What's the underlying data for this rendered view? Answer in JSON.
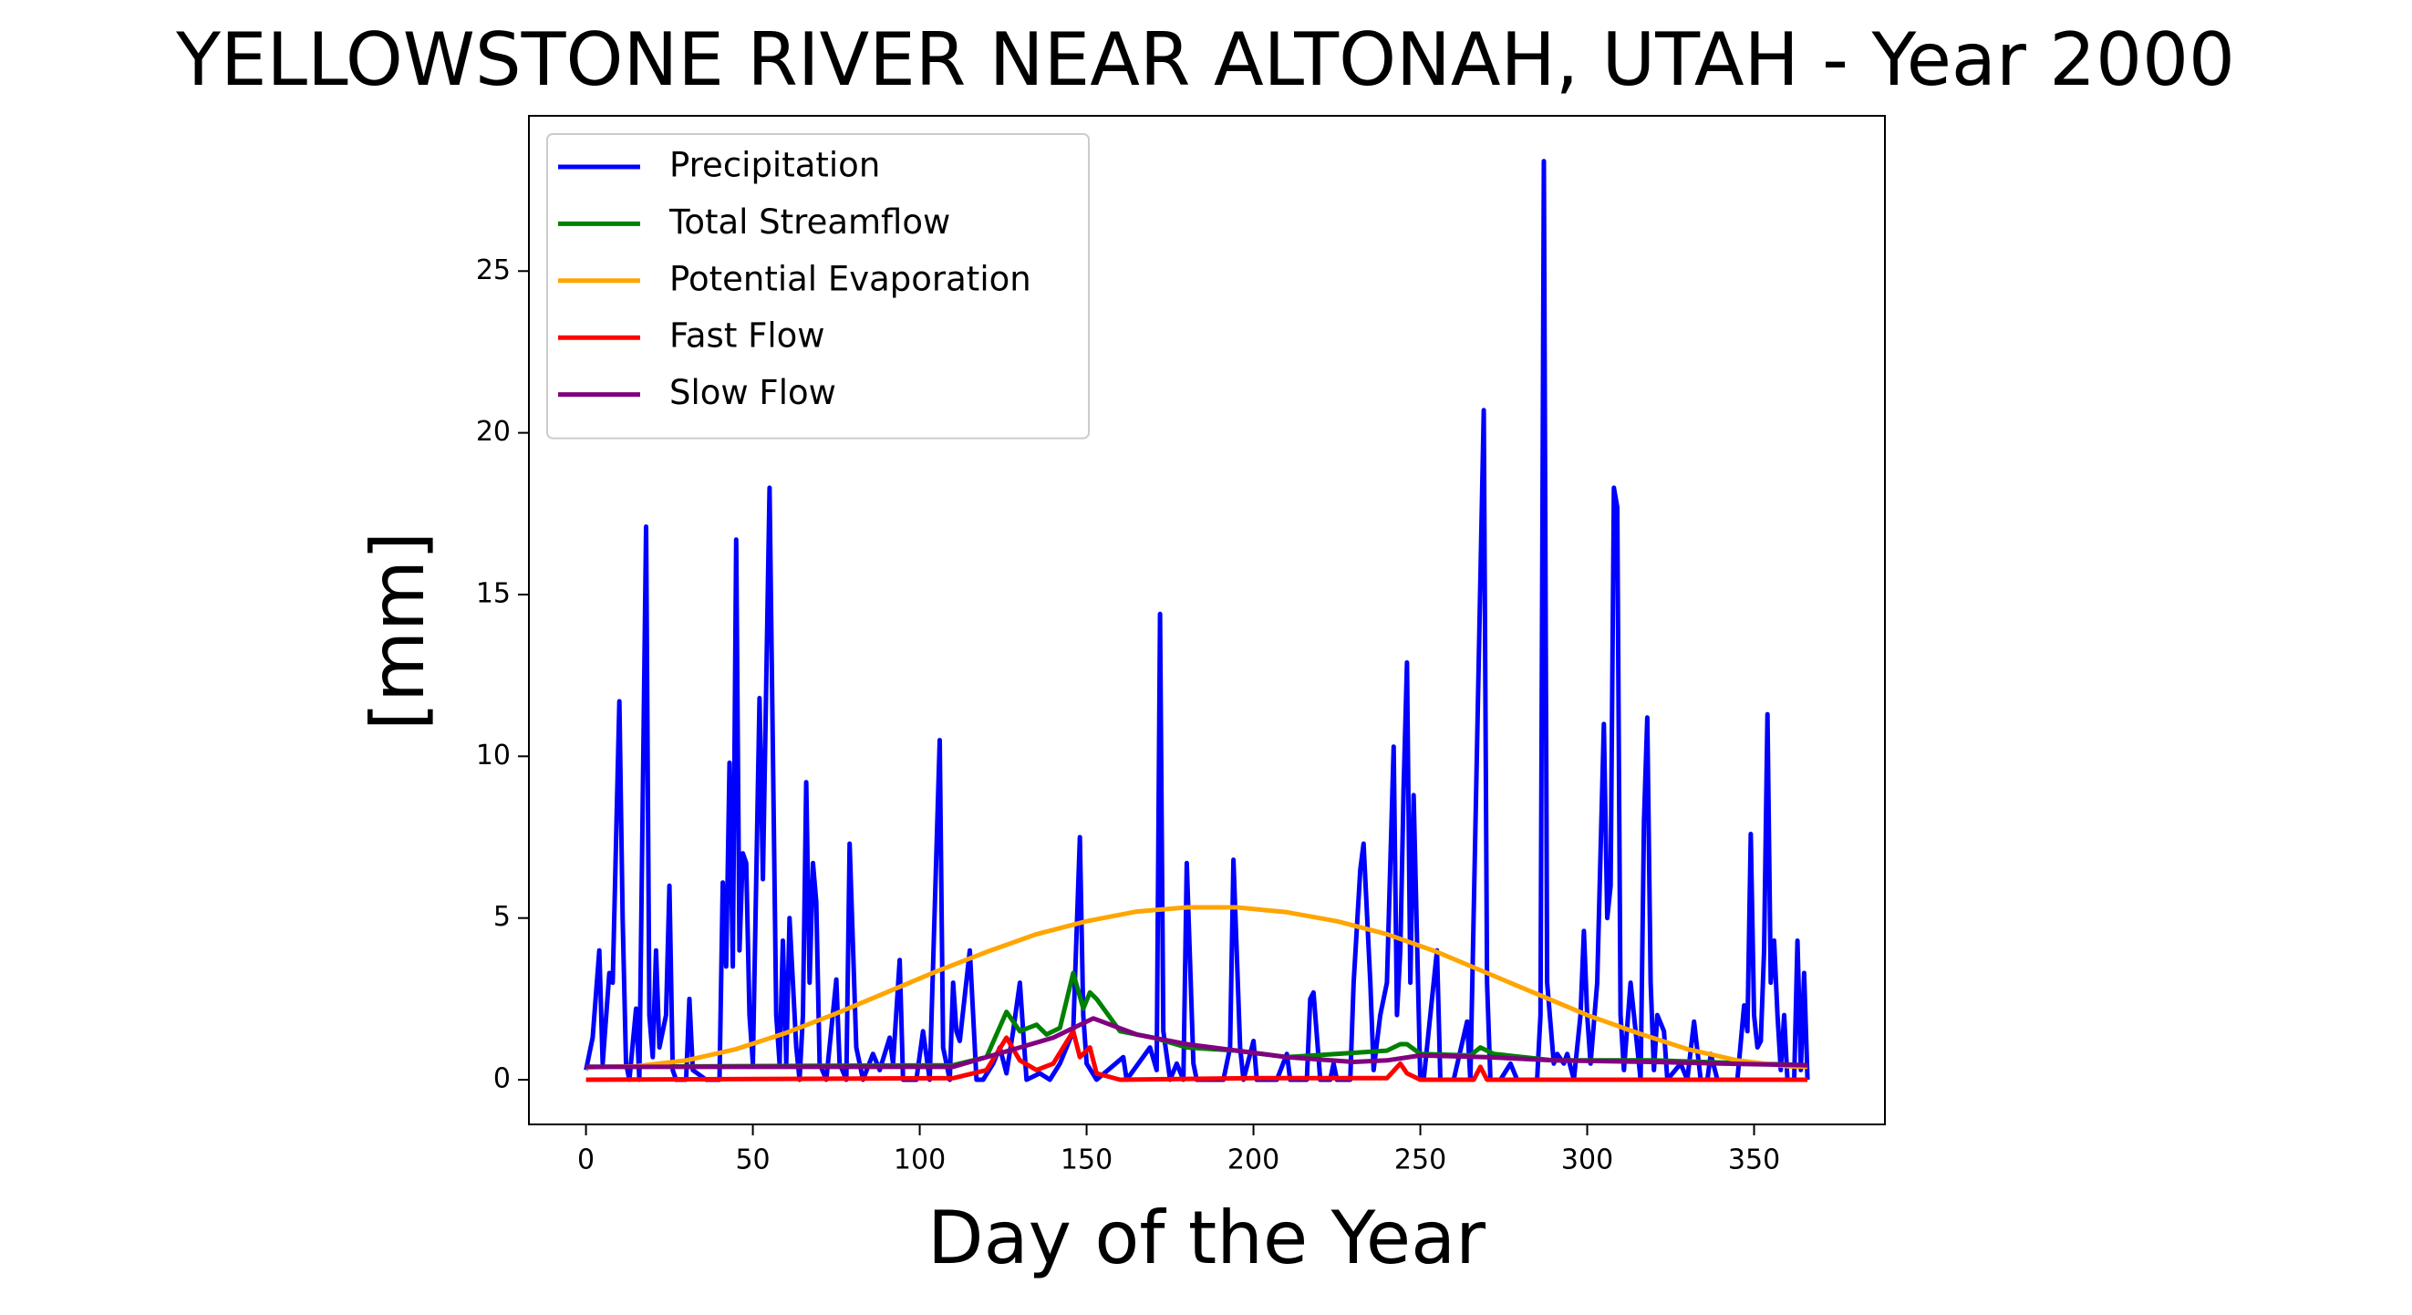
{
  "chart_data": {
    "type": "line",
    "title": "YELLOWSTONE RIVER NEAR ALTONAH, UTAH - Year 2000",
    "x_label": "Day of the Year",
    "y_label": "[mm]",
    "xlim": [
      -17.1,
      389.2
    ],
    "ylim": [
      -1.38,
      29.8
    ],
    "xticks": [
      0,
      50,
      100,
      150,
      200,
      250,
      300,
      350
    ],
    "yticks": [
      0,
      5,
      10,
      15,
      20,
      25
    ],
    "legend": "upper left",
    "series": [
      {
        "name": "Precipitation",
        "color": "#0000ff",
        "x": [
          0,
          2,
          4,
          5,
          7,
          8,
          10,
          11,
          12,
          13,
          15,
          16,
          18,
          19,
          20,
          21,
          22,
          24,
          25,
          26,
          27,
          30,
          31,
          32,
          36,
          40,
          41,
          42,
          43,
          44,
          45,
          46,
          47,
          48,
          49,
          50,
          52,
          53,
          55,
          57,
          58,
          59,
          60,
          61,
          63,
          64,
          65,
          66,
          67,
          68,
          69,
          70,
          72,
          75,
          76,
          78,
          79,
          81,
          83,
          86,
          88,
          91,
          92,
          94,
          95,
          99,
          101,
          103,
          106,
          107,
          109,
          110,
          111,
          112,
          115,
          117,
          119,
          122,
          124,
          126,
          128,
          130,
          131,
          132,
          136,
          139,
          142,
          146,
          148,
          149,
          150,
          153,
          161,
          162,
          169,
          171,
          172,
          173,
          175,
          177,
          179,
          180,
          182,
          183,
          191,
          193,
          194,
          196,
          197,
          200,
          201,
          207,
          210,
          211,
          216,
          217,
          218,
          220,
          223,
          224,
          225,
          229,
          230,
          232,
          233,
          235,
          236,
          238,
          240,
          242,
          243,
          244,
          245,
          246,
          247,
          248,
          250,
          251,
          255,
          256,
          260,
          264,
          265,
          269,
          270,
          271,
          274,
          277,
          279,
          285,
          286,
          287,
          288,
          290,
          291,
          293,
          294,
          296,
          298,
          299,
          300,
          301,
          303,
          305,
          306,
          307,
          308,
          309,
          310,
          311,
          313,
          314,
          316,
          317,
          318,
          319,
          320,
          321,
          323,
          324,
          328,
          330,
          332,
          334,
          336,
          337,
          339,
          345,
          347,
          348,
          349,
          350,
          351,
          352,
          353,
          354,
          355,
          356,
          357,
          358,
          359,
          360,
          362,
          363,
          364,
          365,
          366
        ],
        "values": [
          0.3,
          1.3,
          4,
          0.5,
          3.3,
          3,
          11.7,
          5,
          0.5,
          0,
          2.2,
          0,
          17.1,
          2,
          0.7,
          4,
          1,
          2,
          6,
          0.3,
          0,
          0,
          2.5,
          0.3,
          0,
          0,
          6.1,
          3.5,
          9.8,
          3.5,
          16.7,
          4,
          7,
          6.7,
          2,
          0.5,
          11.8,
          6.2,
          18.3,
          2,
          0.5,
          4.3,
          0.5,
          5,
          1,
          0,
          2,
          9.2,
          3,
          6.7,
          5.5,
          0.5,
          0,
          3.1,
          0.5,
          0,
          7.3,
          1,
          0,
          0.8,
          0.3,
          1.3,
          0.5,
          3.7,
          0,
          0,
          1.5,
          0,
          10.5,
          1,
          0,
          3,
          1.5,
          1.2,
          4,
          0,
          0,
          0.5,
          1,
          0.2,
          1.5,
          3,
          1.5,
          0,
          0.2,
          0,
          0.5,
          1.5,
          7.5,
          2,
          0.5,
          0,
          0.7,
          0,
          1,
          0.3,
          14.4,
          1.5,
          0,
          0.5,
          0,
          6.7,
          0.5,
          0,
          0,
          1,
          6.8,
          1,
          0,
          1.2,
          0,
          0,
          0.8,
          0,
          0,
          2.5,
          2.7,
          0,
          0,
          0.5,
          0,
          0,
          3,
          6.5,
          7.3,
          3,
          0.3,
          2,
          3,
          10.3,
          2,
          4,
          9,
          12.9,
          3,
          8.8,
          0,
          0,
          4,
          0,
          0,
          1.8,
          0,
          20.7,
          3,
          0,
          0,
          0.5,
          0,
          0,
          2,
          28.4,
          3,
          0.5,
          0.8,
          0.5,
          0.8,
          0,
          2,
          4.6,
          2,
          0.5,
          3,
          11,
          5,
          6,
          18.3,
          17.7,
          2,
          0.3,
          3,
          2,
          0,
          8,
          11.2,
          3,
          0.3,
          2,
          1.5,
          0,
          0.5,
          0,
          1.8,
          0,
          0,
          0.8,
          0,
          0,
          2.3,
          1.5,
          7.6,
          2,
          1,
          1.2,
          4,
          11.3,
          3,
          4.3,
          2,
          0.3,
          2,
          0,
          0,
          4.3,
          0.3,
          3.3,
          0
        ]
      },
      {
        "name": "Total Streamflow",
        "color": "#008000",
        "x": [
          0,
          110,
          120,
          126,
          130,
          135,
          138,
          142,
          146,
          149,
          151,
          153,
          160,
          170,
          180,
          195,
          210,
          240,
          244,
          246,
          250,
          265,
          268,
          272,
          290,
          320,
          366
        ],
        "values": [
          0.4,
          0.45,
          0.7,
          2.1,
          1.5,
          1.7,
          1.4,
          1.6,
          3.3,
          2.2,
          2.7,
          2.5,
          1.5,
          1.3,
          1.0,
          0.9,
          0.7,
          0.9,
          1.1,
          1.1,
          0.8,
          0.75,
          1.0,
          0.8,
          0.6,
          0.6,
          0.45
        ]
      },
      {
        "name": "Potential Evaporation",
        "color": "#ffa500",
        "x": [
          0,
          15,
          30,
          45,
          60,
          75,
          90,
          105,
          120,
          135,
          150,
          165,
          180,
          195,
          210,
          225,
          240,
          255,
          270,
          285,
          300,
          315,
          330,
          345,
          360,
          366
        ],
        "values": [
          0.38,
          0.42,
          0.6,
          0.95,
          1.45,
          2.05,
          2.7,
          3.35,
          3.95,
          4.5,
          4.9,
          5.2,
          5.33,
          5.33,
          5.18,
          4.9,
          4.5,
          3.95,
          3.3,
          2.65,
          2.0,
          1.45,
          0.95,
          0.6,
          0.42,
          0.4
        ]
      },
      {
        "name": "Fast Flow",
        "color": "#ff0000",
        "x": [
          0,
          110,
          120,
          126,
          130,
          135,
          140,
          146,
          148,
          151,
          153,
          160,
          200,
          240,
          244,
          246,
          250,
          266,
          268,
          270,
          366
        ],
        "values": [
          0,
          0.05,
          0.3,
          1.3,
          0.6,
          0.3,
          0.5,
          1.5,
          0.7,
          1.0,
          0.2,
          0,
          0.05,
          0.05,
          0.5,
          0.2,
          0,
          0,
          0.4,
          0,
          0
        ]
      },
      {
        "name": "Slow Flow",
        "color": "#800080",
        "x": [
          0,
          110,
          130,
          140,
          152,
          165,
          180,
          195,
          210,
          230,
          240,
          250,
          270,
          290,
          320,
          340,
          366
        ],
        "values": [
          0.4,
          0.4,
          1.0,
          1.3,
          1.9,
          1.4,
          1.1,
          0.9,
          0.7,
          0.55,
          0.6,
          0.75,
          0.7,
          0.6,
          0.55,
          0.5,
          0.45
        ]
      }
    ]
  }
}
